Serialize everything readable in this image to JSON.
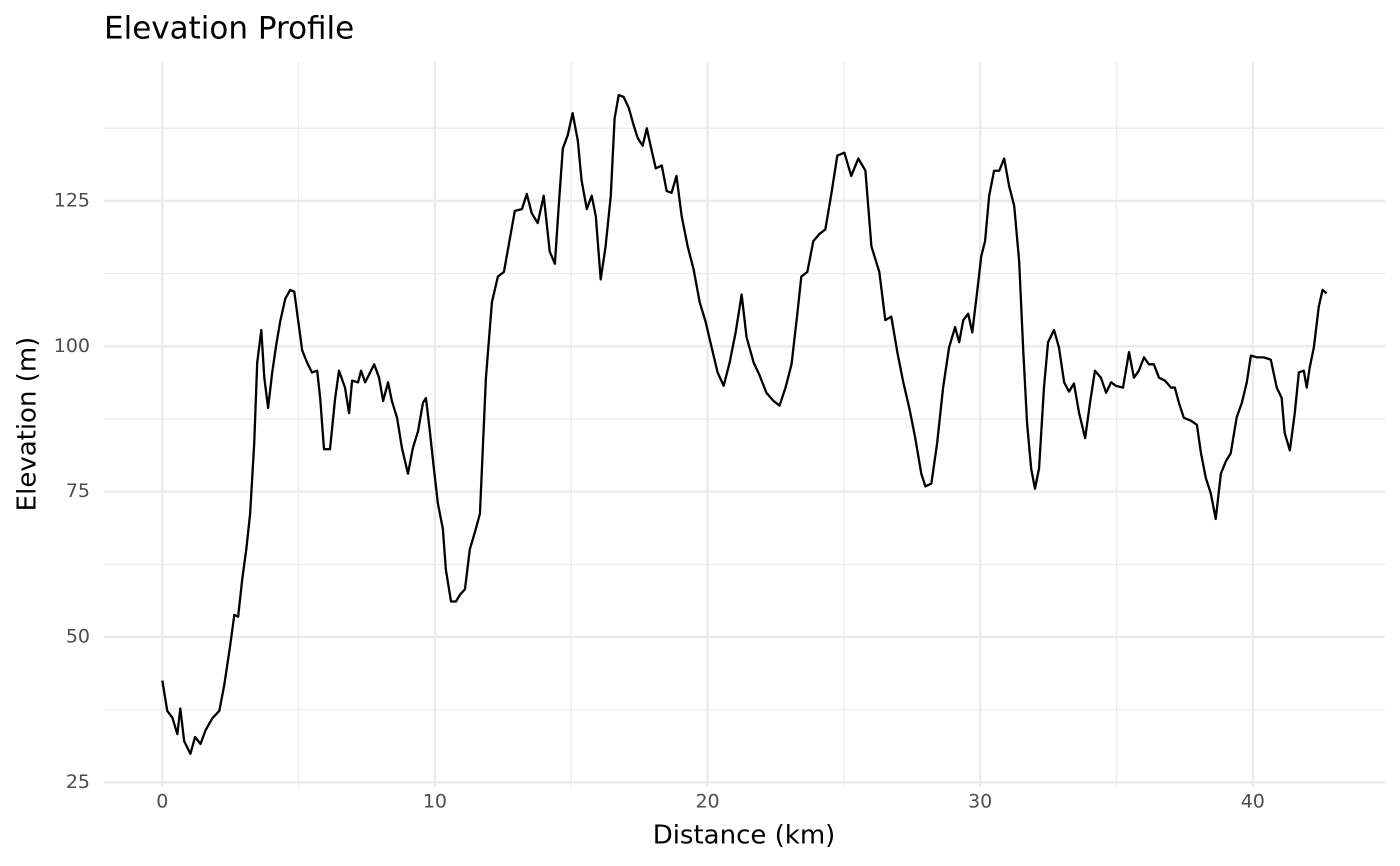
{
  "chart_data": {
    "type": "line",
    "title": "Elevation Profile",
    "x_label": "Distance (km)",
    "y_label": "Elevation (m)",
    "color": "#000000",
    "grid": true,
    "xlim": [
      -2.14,
      44.85
    ],
    "ylim": [
      24.2,
      148.9
    ],
    "xticks": [
      0,
      10,
      20,
      30,
      40
    ],
    "yticks": [
      25,
      50,
      75,
      100,
      125
    ],
    "xminorticks": [
      5,
      15,
      25,
      35
    ],
    "yminorticks": [
      37.5,
      62.5,
      87.5,
      112.5,
      137.5
    ],
    "x": [
      0,
      0.18,
      0.37,
      0.55,
      0.66,
      0.8,
      1.03,
      1.2,
      1.4,
      1.58,
      1.83,
      2.09,
      2.27,
      2.49,
      2.64,
      2.78,
      2.93,
      3.08,
      3.22,
      3.37,
      3.48,
      3.63,
      3.74,
      3.88,
      4.03,
      4.18,
      4.32,
      4.51,
      4.69,
      4.84,
      4.98,
      5.13,
      5.31,
      5.49,
      5.68,
      5.79,
      5.93,
      6.15,
      6.34,
      6.48,
      6.7,
      6.85,
      6.96,
      7.18,
      7.29,
      7.44,
      7.58,
      7.77,
      7.95,
      8.1,
      8.28,
      8.42,
      8.61,
      8.79,
      9.01,
      9.19,
      9.38,
      9.56,
      9.67,
      9.82,
      9.96,
      10.11,
      10.29,
      10.4,
      10.59,
      10.77,
      10.92,
      11.1,
      11.28,
      11.47,
      11.65,
      11.87,
      12.09,
      12.31,
      12.53,
      12.71,
      12.93,
      13.19,
      13.37,
      13.55,
      13.77,
      13.99,
      14.21,
      14.4,
      14.54,
      14.69,
      14.87,
      15.05,
      15.24,
      15.38,
      15.57,
      15.75,
      15.9,
      16.08,
      16.26,
      16.45,
      16.59,
      16.74,
      16.92,
      17.11,
      17.29,
      17.44,
      17.62,
      17.77,
      17.91,
      18.1,
      18.32,
      18.5,
      18.68,
      18.86,
      19.05,
      19.27,
      19.49,
      19.71,
      19.93,
      20.15,
      20.37,
      20.59,
      20.81,
      21.03,
      21.25,
      21.43,
      21.69,
      21.9,
      22.16,
      22.42,
      22.64,
      22.86,
      23.08,
      23.3,
      23.44,
      23.66,
      23.88,
      24.1,
      24.32,
      24.54,
      24.76,
      25.02,
      25.27,
      25.53,
      25.79,
      26.01,
      26.3,
      26.52,
      26.74,
      26.96,
      27.18,
      27.4,
      27.62,
      27.84,
      27.99,
      28.21,
      28.42,
      28.64,
      28.86,
      29.08,
      29.23,
      29.38,
      29.56,
      29.71,
      29.89,
      30.04,
      30.18,
      30.33,
      30.51,
      30.7,
      30.88,
      31.06,
      31.25,
      31.43,
      31.58,
      31.72,
      31.87,
      32.01,
      32.16,
      32.34,
      32.49,
      32.71,
      32.89,
      33.08,
      33.26,
      33.44,
      33.63,
      33.85,
      34.03,
      34.21,
      34.43,
      34.62,
      34.8,
      34.98,
      35.24,
      35.46,
      35.64,
      35.82,
      36.01,
      36.19,
      36.37,
      36.56,
      36.78,
      37,
      37.14,
      37.29,
      37.47,
      37.73,
      37.95,
      38.1,
      38.28,
      38.46,
      38.64,
      38.83,
      39.01,
      39.19,
      39.41,
      39.6,
      39.78,
      39.93,
      40.15,
      40.4,
      40.66,
      40.88,
      41.06,
      41.17,
      41.36,
      41.54,
      41.69,
      41.87,
      41.98,
      42.09,
      42.24,
      42.42,
      42.56,
      42.71
    ],
    "values": [
      42.5,
      37.3,
      36.1,
      33.3,
      37.7,
      32.1,
      29.9,
      32.8,
      31.6,
      33.9,
      36,
      37.3,
      41.7,
      48.6,
      53.8,
      53.5,
      59.9,
      65.1,
      71.2,
      83.3,
      97.2,
      102.8,
      94.6,
      89.4,
      95.5,
      100.3,
      104.2,
      108.2,
      109.7,
      109.4,
      104.5,
      99.3,
      97.2,
      95.5,
      95.8,
      91.1,
      82.3,
      82.3,
      91.1,
      95.8,
      92.9,
      88.5,
      94.1,
      93.8,
      95.8,
      93.8,
      95.1,
      96.9,
      94.6,
      90.6,
      93.8,
      90.6,
      87.7,
      82.5,
      78.1,
      82.5,
      85.4,
      90.3,
      91.1,
      85.1,
      79,
      72.9,
      68.6,
      61.6,
      56.1,
      56.1,
      57.3,
      58.2,
      65.1,
      68.1,
      71.2,
      94.6,
      107.6,
      112,
      112.8,
      117.5,
      123.3,
      123.6,
      126.2,
      122.9,
      121.2,
      125.9,
      116.3,
      114.2,
      124.1,
      134,
      136.3,
      140.1,
      135.4,
      128.5,
      123.6,
      125.9,
      122.4,
      111.5,
      117.2,
      125.9,
      139.2,
      143.2,
      142.9,
      141,
      138,
      135.8,
      134.5,
      137.5,
      134.5,
      130.6,
      131.1,
      126.7,
      126.4,
      129.3,
      122.4,
      117.2,
      113.2,
      107.6,
      104.2,
      99.8,
      95.5,
      93.2,
      97.2,
      102.4,
      108.9,
      101.6,
      97.2,
      95.1,
      92,
      90.6,
      89.8,
      92.9,
      96.9,
      105.9,
      112,
      112.8,
      118.1,
      119.3,
      120.1,
      126.2,
      132.8,
      133.3,
      129.3,
      132.3,
      130.2,
      117.2,
      112.8,
      104.5,
      105.1,
      99,
      93.8,
      89.4,
      84.2,
      78.1,
      75.9,
      76.4,
      83.3,
      92.9,
      99.8,
      103.3,
      100.7,
      104.5,
      105.6,
      102.4,
      109.4,
      115.5,
      118.1,
      125.9,
      130.2,
      130.2,
      132.3,
      127.6,
      124.1,
      114.6,
      99.3,
      86.8,
      79,
      75.5,
      79,
      92.9,
      100.7,
      102.8,
      99.8,
      93.8,
      92.2,
      93.6,
      88.5,
      84.2,
      90.3,
      95.8,
      94.6,
      92,
      93.8,
      93.2,
      92.9,
      99,
      94.6,
      95.8,
      98.1,
      96.9,
      96.9,
      94.6,
      94.1,
      92.9,
      92.9,
      90.3,
      87.7,
      87.2,
      86.5,
      81.6,
      77.3,
      74.7,
      70.3,
      78.1,
      80.2,
      81.6,
      87.8,
      90.3,
      93.8,
      98.4,
      98.1,
      98.1,
      97.7,
      92.9,
      91.1,
      85.1,
      82.1,
      88.5,
      95.5,
      95.8,
      92.9,
      96.4,
      99.8,
      106.8,
      109.7,
      109.1
    ]
  }
}
